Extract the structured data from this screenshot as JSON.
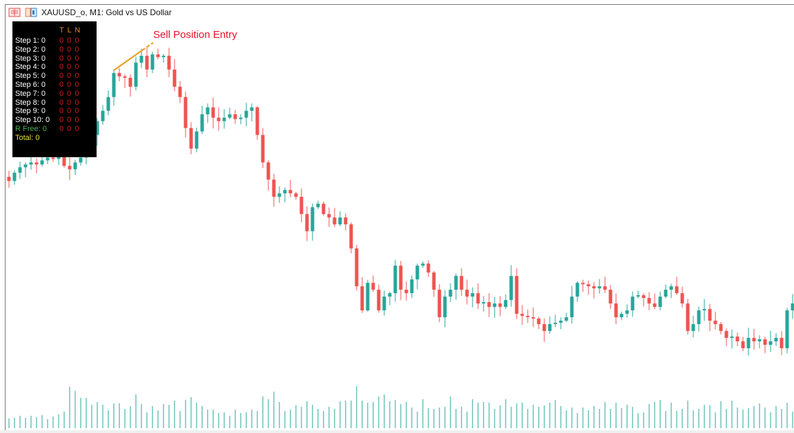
{
  "window": {
    "title": "XAUUSD_o, M1:  Gold vs US Dollar"
  },
  "icons": [
    "chart-list-icon",
    "chart-window-icon"
  ],
  "panel": {
    "header": "T L N",
    "rows": [
      {
        "label": "Step 1: 0",
        "value": "0 0 0"
      },
      {
        "label": "Step 2: 0",
        "value": "0 0 0"
      },
      {
        "label": "Step 3: 0",
        "value": "0 0 0"
      },
      {
        "label": "Step 4: 0",
        "value": "0 0 0"
      },
      {
        "label": "Step 5: 0",
        "value": "0 0 0"
      },
      {
        "label": "Step 6: 0",
        "value": "0 0 0"
      },
      {
        "label": "Step 7: 0",
        "value": "0 0 0"
      },
      {
        "label": "Step 8: 0",
        "value": "0 0 0"
      },
      {
        "label": "Step 9: 0",
        "value": "0 0 0"
      },
      {
        "label": "Step 10: 0",
        "value": "0 0 0"
      }
    ],
    "rfree": {
      "label": "R Free: 0",
      "value": "0 0 0"
    },
    "total": "Total: 0"
  },
  "annotation": {
    "text": "Sell Position Entry",
    "color": "#e8102a",
    "line_color": "#e8a020"
  },
  "colors": {
    "bull": "#26a69a",
    "bear": "#ef5350",
    "volume": "#26a69a"
  },
  "chart_data": {
    "type": "candlestick",
    "symbol": "XAUUSD_o",
    "timeframe": "M1",
    "closes": [
      2373.8,
      2375.0,
      2375.8,
      2376.2,
      2376.5,
      2376.2,
      2376.8,
      2377.2,
      2377.0,
      2377.5,
      2376.0,
      2375.5,
      2376.5,
      2377.2,
      2379.0,
      2380.5,
      2382.5,
      2384.0,
      2386.0,
      2389.5,
      2389.0,
      2388.8,
      2387.5,
      2391.0,
      2392.0,
      2390.0,
      2392.2,
      2391.8,
      2392.0,
      2390.0,
      2387.5,
      2386.0,
      2381.5,
      2378.5,
      2381.0,
      2383.5,
      2384.5,
      2383.0,
      2382.5,
      2383.0,
      2383.5,
      2382.8,
      2383.0,
      2384.0,
      2384.5,
      2380.5,
      2376.5,
      2374.0,
      2371.5,
      2372.0,
      2372.5,
      2372.0,
      2371.5,
      2369.0,
      2366.5,
      2370.0,
      2370.5,
      2369.0,
      2368.5,
      2367.5,
      2368.5,
      2367.5,
      2364.0,
      2358.5,
      2355.0,
      2359.0,
      2358.0,
      2355.0,
      2357.0,
      2357.5,
      2361.5,
      2358.0,
      2357.5,
      2359.5,
      2361.5,
      2361.8,
      2360.5,
      2358.0,
      2354.0,
      2357.0,
      2358.0,
      2360.0,
      2358.0,
      2357.0,
      2357.5,
      2356.0,
      2356.2,
      2355.5,
      2356.0,
      2355.5,
      2356.5,
      2360.0,
      2354.5,
      2354.2,
      2354.0,
      2353.8,
      2353.0,
      2352.0,
      2353.0,
      2353.2,
      2353.5,
      2354.0,
      2357.0,
      2359.0,
      2358.8,
      2358.5,
      2358.2,
      2358.5,
      2358.0,
      2356.0,
      2354.0,
      2354.5,
      2355.0,
      2357.0,
      2357.2,
      2356.8,
      2356.0,
      2355.5,
      2357.0,
      2358.0,
      2358.5,
      2357.5,
      2356.0,
      2352.0,
      2353.0,
      2355.0,
      2355.2,
      2353.5,
      2353.0,
      2352.0,
      2351.0,
      2351.2,
      2350.5,
      2349.5,
      2351.0,
      2350.5,
      2350.8,
      2350.0,
      2350.5,
      2351.0,
      2349.5,
      2355.0,
      2356.0
    ],
    "volumes": [
      14,
      15,
      18,
      15,
      18,
      16,
      19,
      13,
      17,
      20,
      24,
      60,
      54,
      44,
      44,
      34,
      38,
      34,
      26,
      36,
      36,
      28,
      32,
      49,
      35,
      23,
      32,
      26,
      35,
      34,
      40,
      25,
      41,
      45,
      37,
      32,
      27,
      27,
      22,
      23,
      18,
      27,
      22,
      23,
      27,
      25,
      46,
      42,
      53,
      38,
      25,
      27,
      33,
      31,
      39,
      34,
      28,
      25,
      31,
      28,
      39,
      40,
      40,
      61,
      40,
      37,
      38,
      46,
      49,
      39,
      41,
      35,
      38,
      30,
      24,
      42,
      29,
      28,
      30,
      31,
      46,
      28,
      31,
      24,
      42,
      37,
      38,
      37,
      28,
      33,
      42,
      31,
      36,
      37,
      28,
      34,
      31,
      33,
      37,
      41,
      32,
      26,
      30,
      22,
      30,
      26,
      32,
      28,
      38,
      28,
      37,
      29,
      34,
      31,
      22,
      23,
      35,
      38,
      41,
      25,
      37,
      25,
      28,
      40,
      26,
      28,
      34,
      33,
      23,
      39,
      28,
      40,
      30,
      27,
      29,
      32,
      36,
      30,
      23,
      32,
      28,
      37,
      24
    ],
    "ylim": [
      2347.5,
      2399.3
    ]
  }
}
